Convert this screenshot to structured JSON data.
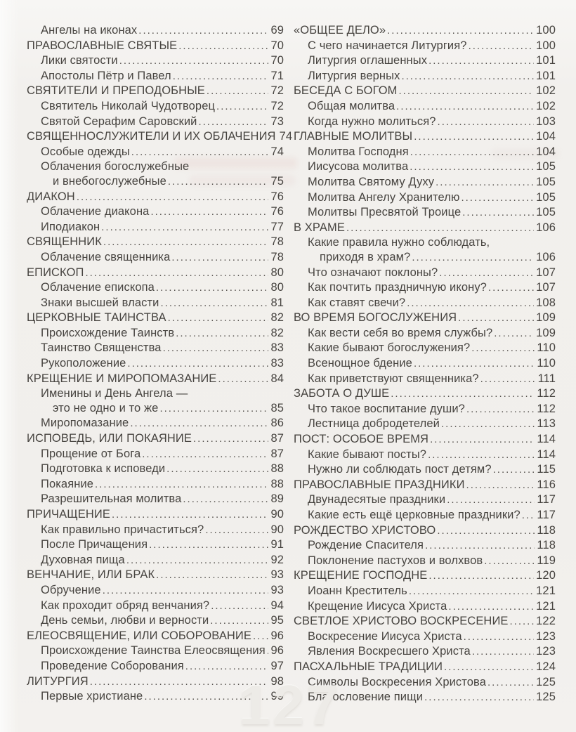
{
  "colors": {
    "paper": "#f2f0ed",
    "text": "#474440",
    "watermark": "#edebe7"
  },
  "watermark": {
    "page_number": "127"
  },
  "toc": {
    "left_column": [
      {
        "level": 1,
        "text": "Ангелы на иконах",
        "page": "69"
      },
      {
        "level": 0,
        "text": "ПРАВОСЛАВНЫЕ СВЯТЫЕ",
        "page": "70"
      },
      {
        "level": 1,
        "text": "Лики святости",
        "page": "70"
      },
      {
        "level": 1,
        "text": "Апостолы Пётр и Павел",
        "page": "71"
      },
      {
        "level": 0,
        "text": "СВЯТИТЕЛИ И ПРЕПОДОБНЫЕ",
        "page": "72"
      },
      {
        "level": 1,
        "text": "Святитель Николай Чудотворец",
        "page": "72"
      },
      {
        "level": 1,
        "text": "Святой Серафим Саровский",
        "page": "73"
      },
      {
        "level": 0,
        "text": "СВЯЩЕННОСЛУЖИТЕЛИ И ИХ ОБЛАЧЕНИЯ",
        "page": "74"
      },
      {
        "level": 1,
        "text": "Особые одежды",
        "page": "74"
      },
      {
        "level": 1,
        "text": "Облачения богослужебные",
        "page": ""
      },
      {
        "level": 2,
        "text": "и внебогослужебные",
        "page": "75"
      },
      {
        "level": 0,
        "text": "ДИАКОН",
        "page": "76"
      },
      {
        "level": 1,
        "text": "Облачение диакона",
        "page": "76"
      },
      {
        "level": 1,
        "text": "Иподиакон",
        "page": "77"
      },
      {
        "level": 0,
        "text": "СВЯЩЕННИК",
        "page": "78"
      },
      {
        "level": 1,
        "text": "Облачение священника",
        "page": "78"
      },
      {
        "level": 0,
        "text": "ЕПИСКОП",
        "page": "80"
      },
      {
        "level": 1,
        "text": "Облачение епископа",
        "page": "80"
      },
      {
        "level": 1,
        "text": "Знаки высшей власти",
        "page": "81"
      },
      {
        "level": 0,
        "text": "ЦЕРКОВНЫЕ ТАИНСТВА",
        "page": "82"
      },
      {
        "level": 1,
        "text": "Происхождение Таинств",
        "page": "82"
      },
      {
        "level": 1,
        "text": "Таинство Священства",
        "page": "83"
      },
      {
        "level": 1,
        "text": "Рукоположение",
        "page": "83"
      },
      {
        "level": 0,
        "text": "КРЕЩЕНИЕ И МИРОПОМАЗАНИЕ",
        "page": "84"
      },
      {
        "level": 1,
        "text": "Именины и День Ангела —",
        "page": ""
      },
      {
        "level": 2,
        "text": "это не одно и то же",
        "page": "85"
      },
      {
        "level": 1,
        "text": "Миропомазание",
        "page": "86"
      },
      {
        "level": 0,
        "text": "ИСПОВЕДЬ, ИЛИ ПОКАЯНИЕ",
        "page": "87"
      },
      {
        "level": 1,
        "text": "Прощение от Бога",
        "page": "87"
      },
      {
        "level": 1,
        "text": "Подготовка к исповеди",
        "page": "88"
      },
      {
        "level": 1,
        "text": "Покаяние",
        "page": "88"
      },
      {
        "level": 1,
        "text": "Разрешительная молитва",
        "page": "89"
      },
      {
        "level": 0,
        "text": "ПРИЧАЩЕНИЕ",
        "page": "90"
      },
      {
        "level": 1,
        "text": "Как правильно причаститься?",
        "page": "90"
      },
      {
        "level": 1,
        "text": "После Причащения",
        "page": "91"
      },
      {
        "level": 1,
        "text": "Духовная пища",
        "page": "92"
      },
      {
        "level": 0,
        "text": "ВЕНЧАНИЕ, ИЛИ БРАК",
        "page": "93"
      },
      {
        "level": 1,
        "text": "Обручение",
        "page": "93"
      },
      {
        "level": 1,
        "text": "Как проходит обряд венчания?",
        "page": "94"
      },
      {
        "level": 1,
        "text": "День семьи, любви и верности",
        "page": "95"
      },
      {
        "level": 0,
        "text": "ЕЛЕОСВЯЩЕНИЕ, ИЛИ СОБОРОВАНИЕ",
        "page": "96"
      },
      {
        "level": 1,
        "text": "Происхождение Таинства Елеосвящения",
        "page": "96"
      },
      {
        "level": 1,
        "text": "Проведение Соборования",
        "page": "97"
      },
      {
        "level": 0,
        "text": "ЛИТУРГИЯ",
        "page": "98"
      },
      {
        "level": 1,
        "text": "Первые христиане",
        "page": "99"
      }
    ],
    "right_column": [
      {
        "level": 0,
        "text": "«ОБЩЕЕ ДЕЛО»",
        "page": "100"
      },
      {
        "level": 1,
        "text": "С чего начинается Литургия?",
        "page": "100"
      },
      {
        "level": 1,
        "text": "Литургия оглашенных",
        "page": "101"
      },
      {
        "level": 1,
        "text": "Литургия верных",
        "page": "101"
      },
      {
        "level": 0,
        "text": "БЕСЕДА С БОГОМ",
        "page": "102"
      },
      {
        "level": 1,
        "text": "Общая молитва",
        "page": "102"
      },
      {
        "level": 1,
        "text": "Когда нужно молиться?",
        "page": "103"
      },
      {
        "level": 0,
        "text": "ГЛАВНЫЕ МОЛИТВЫ",
        "page": "104"
      },
      {
        "level": 1,
        "text": "Молитва Господня",
        "page": "104"
      },
      {
        "level": 1,
        "text": "Иисусова молитва",
        "page": "105"
      },
      {
        "level": 1,
        "text": "Молитва Святому Духу",
        "page": "105"
      },
      {
        "level": 1,
        "text": "Молитва Ангелу Хранителю",
        "page": "105"
      },
      {
        "level": 1,
        "text": "Молитвы Пресвятой Троице",
        "page": "105"
      },
      {
        "level": 0,
        "text": "В ХРАМЕ",
        "page": "106"
      },
      {
        "level": 1,
        "text": "Какие правила нужно соблюдать,",
        "page": ""
      },
      {
        "level": 2,
        "text": "приходя в храм?",
        "page": "106"
      },
      {
        "level": 1,
        "text": "Что означают поклоны?",
        "page": "107"
      },
      {
        "level": 1,
        "text": "Как почтить праздничную икону?",
        "page": "107"
      },
      {
        "level": 1,
        "text": "Как ставят свечи?",
        "page": "108"
      },
      {
        "level": 0,
        "text": "ВО ВРЕМЯ БОГОСЛУЖЕНИЯ",
        "page": "109"
      },
      {
        "level": 1,
        "text": "Как вести себя во время службы?",
        "page": "109"
      },
      {
        "level": 1,
        "text": "Какие бывают богослужения?",
        "page": "110"
      },
      {
        "level": 1,
        "text": "Всенощное бдение",
        "page": "110"
      },
      {
        "level": 1,
        "text": "Как приветствуют священника?",
        "page": "111"
      },
      {
        "level": 0,
        "text": "ЗАБОТА О ДУШЕ",
        "page": "112"
      },
      {
        "level": 1,
        "text": "Что такое воспитание души?",
        "page": "112"
      },
      {
        "level": 1,
        "text": "Лестница добродетелей",
        "page": "113"
      },
      {
        "level": 0,
        "text": "ПОСТ: ОСОБОЕ ВРЕМЯ",
        "page": "114"
      },
      {
        "level": 1,
        "text": "Какие бывают посты?",
        "page": "114"
      },
      {
        "level": 1,
        "text": "Нужно ли соблюдать пост детям?",
        "page": "115"
      },
      {
        "level": 0,
        "text": "ПРАВОСЛАВНЫЕ ПРАЗДНИКИ",
        "page": "116"
      },
      {
        "level": 1,
        "text": "Двунадесятые праздники",
        "page": "117"
      },
      {
        "level": 1,
        "text": "Какие есть ещё церковные праздники?",
        "page": "117"
      },
      {
        "level": 0,
        "text": "РОЖДЕСТВО ХРИСТОВО",
        "page": "118"
      },
      {
        "level": 1,
        "text": "Рождение Спасителя",
        "page": "118"
      },
      {
        "level": 1,
        "text": "Поклонение пастухов и волхвов",
        "page": "119"
      },
      {
        "level": 0,
        "text": "КРЕЩЕНИЕ ГОСПОДНЕ",
        "page": "120"
      },
      {
        "level": 1,
        "text": "Иоанн Креститель",
        "page": "121"
      },
      {
        "level": 1,
        "text": "Крещение Иисуса Христа",
        "page": "121"
      },
      {
        "level": 0,
        "text": "СВЕТЛОЕ ХРИСТОВО ВОСКРЕСЕНИЕ",
        "page": "122"
      },
      {
        "level": 1,
        "text": "Воскресение Иисуса Христа",
        "page": "123"
      },
      {
        "level": 1,
        "text": "Явления Воскресшего Христа",
        "page": "123"
      },
      {
        "level": 0,
        "text": "ПАСХАЛЬНЫЕ ТРАДИЦИИ",
        "page": "124"
      },
      {
        "level": 1,
        "text": "Символы Воскресения Христова",
        "page": "125"
      },
      {
        "level": 1,
        "text": "Благословение пищи",
        "page": "125"
      }
    ]
  }
}
